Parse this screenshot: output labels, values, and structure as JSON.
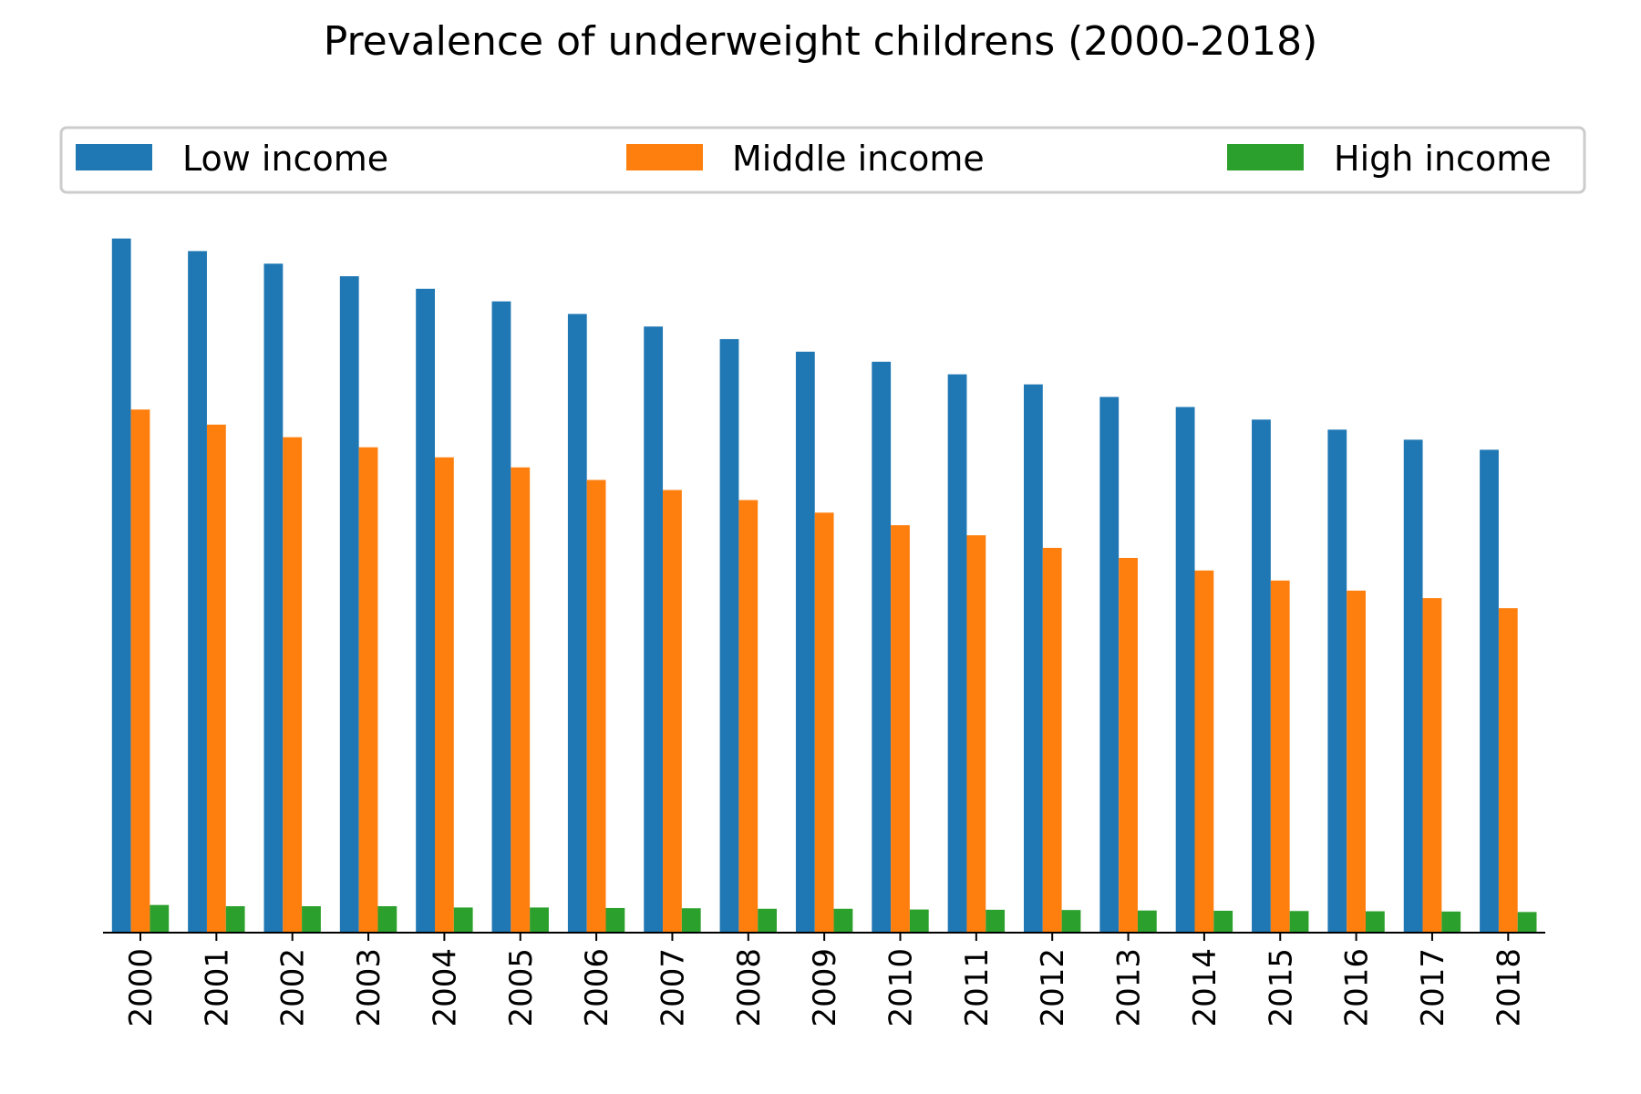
{
  "chart_data": {
    "type": "bar",
    "title": "Prevalence of underweight childrens (2000-2018)",
    "xlabel": "",
    "ylabel": "",
    "ylim": [
      0,
      29
    ],
    "grid": false,
    "legend_position": "top",
    "categories": [
      "2000",
      "2001",
      "2002",
      "2003",
      "2004",
      "2005",
      "2006",
      "2007",
      "2008",
      "2009",
      "2010",
      "2011",
      "2012",
      "2013",
      "2014",
      "2015",
      "2016",
      "2017",
      "2018"
    ],
    "series": [
      {
        "name": "Low income",
        "color": "#1f77b4",
        "values": [
          27.6,
          27.1,
          26.6,
          26.1,
          25.6,
          25.1,
          24.6,
          24.1,
          23.6,
          23.1,
          22.7,
          22.2,
          21.8,
          21.3,
          20.9,
          20.4,
          20.0,
          19.6,
          19.2
        ]
      },
      {
        "name": "Middle income",
        "color": "#ff7f0e",
        "values": [
          20.8,
          20.2,
          19.7,
          19.3,
          18.9,
          18.5,
          18.0,
          17.6,
          17.2,
          16.7,
          16.2,
          15.8,
          15.3,
          14.9,
          14.4,
          14.0,
          13.6,
          13.3,
          12.9
        ]
      },
      {
        "name": "High income",
        "color": "#2ca02c",
        "values": [
          1.1,
          1.05,
          1.05,
          1.05,
          1.0,
          1.0,
          0.98,
          0.97,
          0.95,
          0.95,
          0.92,
          0.91,
          0.9,
          0.88,
          0.87,
          0.86,
          0.85,
          0.84,
          0.82
        ]
      }
    ]
  }
}
